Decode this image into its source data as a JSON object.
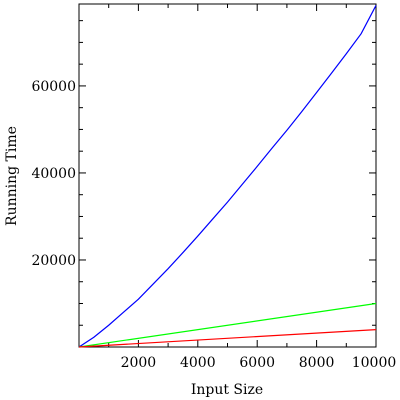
{
  "chart_data": {
    "type": "line",
    "title": "",
    "xlabel": "Input Size",
    "ylabel": "Running Time",
    "xlim": [
      0,
      10000
    ],
    "ylim": [
      0,
      78826
    ],
    "x_ticks": [
      2000,
      4000,
      6000,
      8000,
      10000
    ],
    "y_ticks": [
      20000,
      40000,
      60000
    ],
    "grid": false,
    "legend": "none",
    "series": [
      {
        "color": "#0000ff",
        "x": [
          0,
          500,
          1000,
          1500,
          2000,
          2500,
          3000,
          3500,
          4000,
          4500,
          5000,
          5500,
          6000,
          6500,
          7000,
          7500,
          8000,
          8500,
          9000,
          9500,
          10000
        ],
        "values": [
          0,
          2242,
          5000,
          8000,
          11000,
          14500,
          18000,
          21700,
          25500,
          29400,
          33300,
          37400,
          41500,
          45700,
          49800,
          54100,
          58500,
          62900,
          67400,
          72000,
          78500
        ]
      },
      {
        "color": "#00ff00",
        "x": [
          0,
          10000
        ],
        "values": [
          0,
          10000
        ]
      },
      {
        "color": "#ff0000",
        "x": [
          0,
          10000
        ],
        "values": [
          0,
          4000
        ]
      }
    ]
  }
}
